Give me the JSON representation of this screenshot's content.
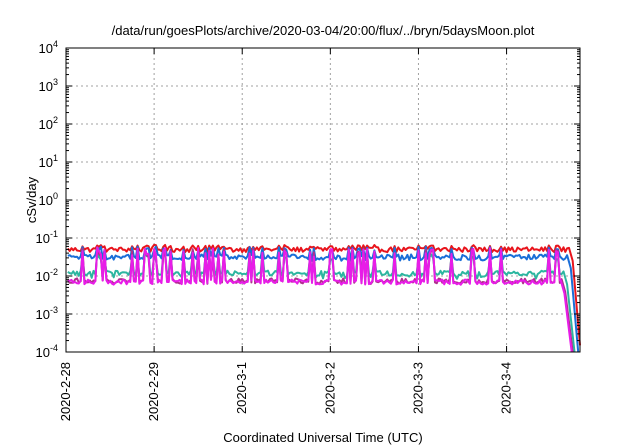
{
  "chart_data": {
    "type": "line",
    "title": "/data/run/goesPlots/archive/2020-03-04/20:00/flux/../bryn/5daysMoon.plot",
    "xlabel": "Coordinated Universal Time (UTC)",
    "ylabel": "cSv/day",
    "yscale": "log",
    "ylim": [
      0.0001,
      10000
    ],
    "xlim": [
      "2020-02-28T00:00",
      "2020-03-04T20:00"
    ],
    "y_ticks": [
      {
        "value": 0.0001,
        "base": "10",
        "exp": "-4"
      },
      {
        "value": 0.001,
        "base": "10",
        "exp": "-3"
      },
      {
        "value": 0.01,
        "base": "10",
        "exp": "-2"
      },
      {
        "value": 0.1,
        "base": "10",
        "exp": "-1"
      },
      {
        "value": 1,
        "base": "10",
        "exp": "0"
      },
      {
        "value": 10,
        "base": "10",
        "exp": "1"
      },
      {
        "value": 100,
        "base": "10",
        "exp": "2"
      },
      {
        "value": 1000,
        "base": "10",
        "exp": "3"
      },
      {
        "value": 10000,
        "base": "10",
        "exp": "4"
      }
    ],
    "x_ticks": [
      {
        "date": "2020-02-28T00:00",
        "label": "2020-2-28"
      },
      {
        "date": "2020-02-29T00:00",
        "label": "2020-2-29"
      },
      {
        "date": "2020-03-01T00:00",
        "label": "2020-3-1"
      },
      {
        "date": "2020-03-02T00:00",
        "label": "2020-3-2"
      },
      {
        "date": "2020-03-03T00:00",
        "label": "2020-3-3"
      },
      {
        "date": "2020-03-04T00:00",
        "label": "2020-3-4"
      }
    ],
    "grid": true,
    "legend": "none",
    "series": [
      {
        "color": "#e8141c",
        "base": 0.05,
        "spike": 0.016,
        "dip": 0.0,
        "end": "2020-03-04T20:00",
        "end_value": 0.00015
      },
      {
        "color": "#1a6ed8",
        "base": 0.032,
        "spike": 0.028,
        "dip": 0.006,
        "end": "2020-03-04T19:30",
        "end_value": 0.0001
      },
      {
        "color": "#2cb6a0",
        "base": 0.012,
        "spike": 0.03,
        "dip": 0.003,
        "end": "2020-03-04T18:30",
        "end_value": 0.0001
      },
      {
        "color": "#b02f8e",
        "base": 0.0075,
        "spike": 0.045,
        "dip": 0.0012,
        "end": "2020-03-04T18:00",
        "end_value": 0.0001
      },
      {
        "color": "#e81ce8",
        "base": 0.007,
        "spike": 0.05,
        "dip": 0.001,
        "end": "2020-03-04T17:45",
        "end_value": 0.0001
      }
    ]
  }
}
